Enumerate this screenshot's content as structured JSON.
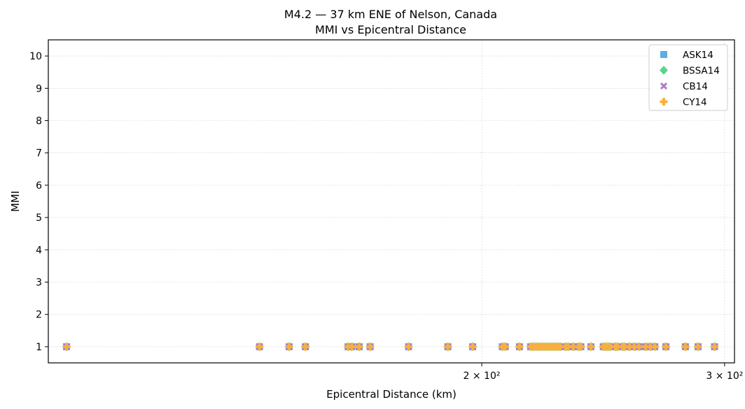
{
  "chart_data": {
    "type": "scatter",
    "title": "M4.2 — 37 km ENE of Nelson, Canada",
    "subtitle": "MMI vs Epicentral Distance",
    "xlabel": "Epicentral Distance (km)",
    "ylabel": "MMI",
    "xscale": "log",
    "xlim": [
      97,
      305
    ],
    "ylim": [
      0.5,
      10.5
    ],
    "xticks": [
      {
        "value": 200,
        "label": "2 × 10²"
      },
      {
        "value": 300,
        "label": "3 × 10²"
      }
    ],
    "yticks": [
      1,
      2,
      3,
      4,
      5,
      6,
      7,
      8,
      9,
      10
    ],
    "grid": true,
    "legend_position": "top-right",
    "x": [
      100,
      138,
      145,
      149,
      160,
      161,
      163,
      166,
      177,
      189,
      197,
      207,
      208,
      213,
      217,
      218,
      219,
      220,
      221,
      222,
      223,
      224,
      225,
      226,
      227,
      228,
      230,
      231,
      233,
      235,
      236,
      240,
      245,
      246,
      247,
      248,
      250,
      251,
      253,
      254,
      256,
      258,
      260,
      263,
      265,
      267,
      272,
      281,
      287,
      295
    ],
    "series": [
      {
        "name": "ASK14",
        "marker": "square",
        "color": "#5DADE2",
        "values": [
          1,
          1,
          1,
          1,
          1,
          1,
          1,
          1,
          1,
          1,
          1,
          1,
          1,
          1,
          1,
          1,
          1,
          1,
          1,
          1,
          1,
          1,
          1,
          1,
          1,
          1,
          1,
          1,
          1,
          1,
          1,
          1,
          1,
          1,
          1,
          1,
          1,
          1,
          1,
          1,
          1,
          1,
          1,
          1,
          1,
          1,
          1,
          1,
          1,
          1
        ]
      },
      {
        "name": "BSSA14",
        "marker": "diamond",
        "color": "#58D68D",
        "values": [
          1,
          1,
          1,
          1,
          1,
          1,
          1,
          1,
          1,
          1,
          1,
          1,
          1,
          1,
          1,
          1,
          1,
          1,
          1,
          1,
          1,
          1,
          1,
          1,
          1,
          1,
          1,
          1,
          1,
          1,
          1,
          1,
          1,
          1,
          1,
          1,
          1,
          1,
          1,
          1,
          1,
          1,
          1,
          1,
          1,
          1,
          1,
          1,
          1,
          1
        ]
      },
      {
        "name": "CB14",
        "marker": "x",
        "color": "#AF7AC5",
        "values": [
          1,
          1,
          1,
          1,
          1,
          1,
          1,
          1,
          1,
          1,
          1,
          1,
          1,
          1,
          1,
          1,
          1,
          1,
          1,
          1,
          1,
          1,
          1,
          1,
          1,
          1,
          1,
          1,
          1,
          1,
          1,
          1,
          1,
          1,
          1,
          1,
          1,
          1,
          1,
          1,
          1,
          1,
          1,
          1,
          1,
          1,
          1,
          1,
          1,
          1
        ]
      },
      {
        "name": "CY14",
        "marker": "plus",
        "color": "#F5B041",
        "values": [
          1,
          1,
          1,
          1,
          1,
          1,
          1,
          1,
          1,
          1,
          1,
          1,
          1,
          1,
          1,
          1,
          1,
          1,
          1,
          1,
          1,
          1,
          1,
          1,
          1,
          1,
          1,
          1,
          1,
          1,
          1,
          1,
          1,
          1,
          1,
          1,
          1,
          1,
          1,
          1,
          1,
          1,
          1,
          1,
          1,
          1,
          1,
          1,
          1,
          1
        ]
      }
    ]
  }
}
